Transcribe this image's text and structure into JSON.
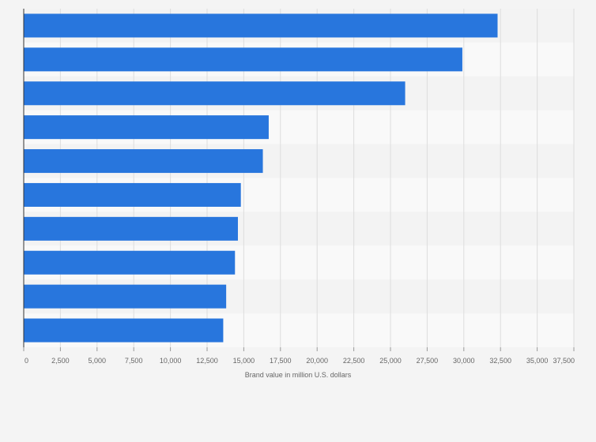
{
  "chart_data": {
    "type": "bar",
    "orientation": "horizontal",
    "categories": [
      "",
      "",
      "",
      "",
      "",
      "",
      "",
      "",
      "",
      ""
    ],
    "values": [
      32300,
      29900,
      26000,
      16700,
      16300,
      14800,
      14600,
      14400,
      13800,
      13600
    ],
    "xlabel": "Brand value in million U.S. dollars",
    "ylabel": "",
    "xlim": [
      0,
      37500
    ],
    "ticks": [
      0,
      2500,
      5000,
      7500,
      10000,
      12500,
      15000,
      17500,
      20000,
      22500,
      25000,
      27500,
      30000,
      32500,
      35000,
      37500
    ],
    "tick_labels": [
      "0",
      "2,500",
      "5,000",
      "7,500",
      "10,000",
      "12,500",
      "15,000",
      "17,500",
      "20,000",
      "22,500",
      "25,000",
      "27,500",
      "30,000",
      "32,500",
      "35,000",
      "37,500"
    ],
    "grid": true,
    "bar_color": "#2876dd",
    "band_colors": [
      "#f3f3f3",
      "#f9f9f9"
    ],
    "gridline_color": "#dddddd",
    "axis_color": "#333333"
  }
}
